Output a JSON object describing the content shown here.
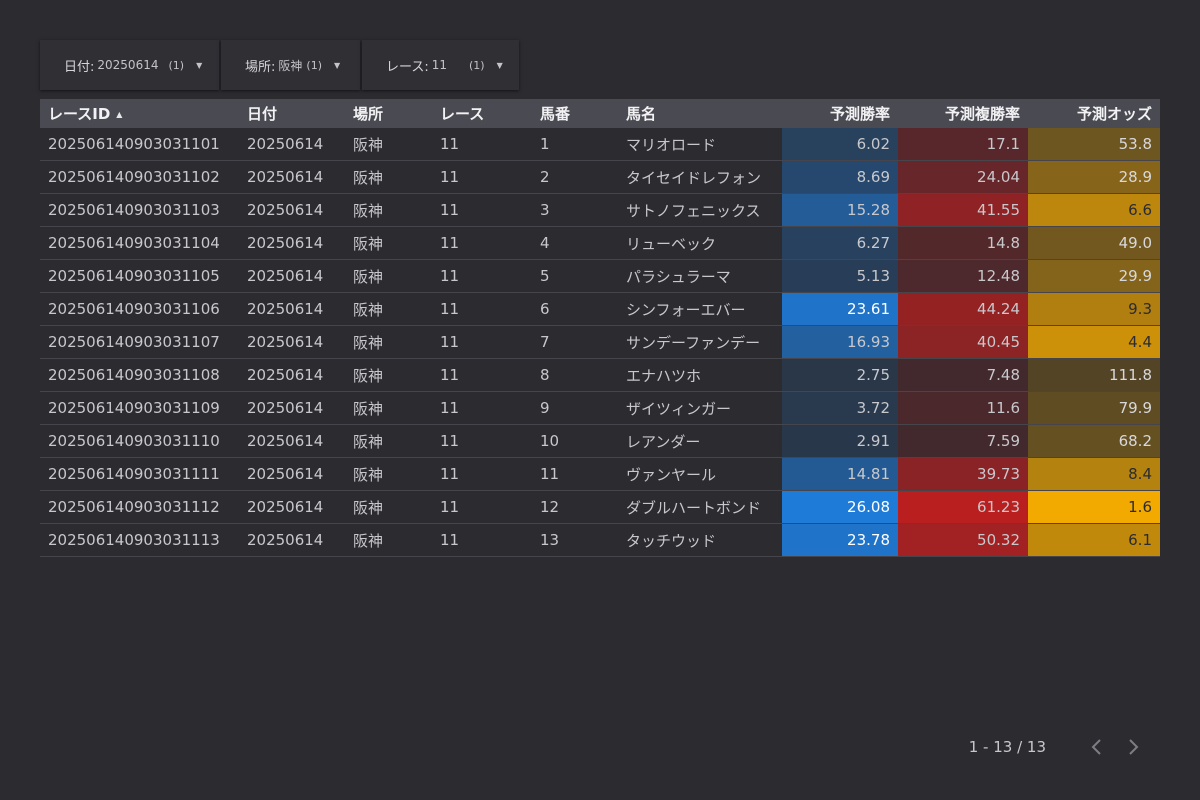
{
  "filters": [
    {
      "label": "日付:",
      "value": "20250614",
      "count": "(1)"
    },
    {
      "label": "場所:",
      "value": "阪神",
      "count": "(1)"
    },
    {
      "label": "レース:",
      "value": "11",
      "count": "(1)"
    }
  ],
  "table": {
    "columns": [
      "レースID",
      "日付",
      "場所",
      "レース",
      "馬番",
      "馬名",
      "予測勝率",
      "予測複勝率",
      "予測オッズ"
    ],
    "rows": [
      [
        "202506140903031101",
        "20250614",
        "阪神",
        "11",
        "1",
        "マリオロード",
        "6.02",
        "17.1",
        "53.8"
      ],
      [
        "202506140903031102",
        "20250614",
        "阪神",
        "11",
        "2",
        "タイセイドレフォン",
        "8.69",
        "24.04",
        "28.9"
      ],
      [
        "202506140903031103",
        "20250614",
        "阪神",
        "11",
        "3",
        "サトノフェニックス",
        "15.28",
        "41.55",
        "6.6"
      ],
      [
        "202506140903031104",
        "20250614",
        "阪神",
        "11",
        "4",
        "リューベック",
        "6.27",
        "14.8",
        "49.0"
      ],
      [
        "202506140903031105",
        "20250614",
        "阪神",
        "11",
        "5",
        "パラシュラーマ",
        "5.13",
        "12.48",
        "29.9"
      ],
      [
        "202506140903031106",
        "20250614",
        "阪神",
        "11",
        "6",
        "シンフォーエバー",
        "23.61",
        "44.24",
        "9.3"
      ],
      [
        "202506140903031107",
        "20250614",
        "阪神",
        "11",
        "7",
        "サンデーファンデー",
        "16.93",
        "40.45",
        "4.4"
      ],
      [
        "202506140903031108",
        "20250614",
        "阪神",
        "11",
        "8",
        "エナハツホ",
        "2.75",
        "7.48",
        "111.8"
      ],
      [
        "202506140903031109",
        "20250614",
        "阪神",
        "11",
        "9",
        "ザイツィンガー",
        "3.72",
        "11.6",
        "79.9"
      ],
      [
        "202506140903031110",
        "20250614",
        "阪神",
        "11",
        "10",
        "レアンダー",
        "2.91",
        "7.59",
        "68.2"
      ],
      [
        "202506140903031111",
        "20250614",
        "阪神",
        "11",
        "11",
        "ヴァンヤール",
        "14.81",
        "39.73",
        "8.4"
      ],
      [
        "202506140903031112",
        "20250614",
        "阪神",
        "11",
        "12",
        "ダブルハートボンド",
        "26.08",
        "61.23",
        "1.6"
      ],
      [
        "202506140903031113",
        "20250614",
        "阪神",
        "11",
        "13",
        "タッチウッド",
        "23.78",
        "50.32",
        "6.1"
      ]
    ]
  },
  "pagination": {
    "range": "1 - 13 / 13"
  },
  "colors": {
    "background": "#2b2b30",
    "header": "#4a4a52",
    "win_rate_scale": "#1e7bd8",
    "place_rate_scale": "#c21e1e",
    "odds_scale": "#f2a900"
  },
  "icons": {
    "sort": "sort-ascending-icon",
    "dropdown": "caret-down-icon",
    "prev": "chevron-left-icon",
    "next": "chevron-right-icon"
  }
}
